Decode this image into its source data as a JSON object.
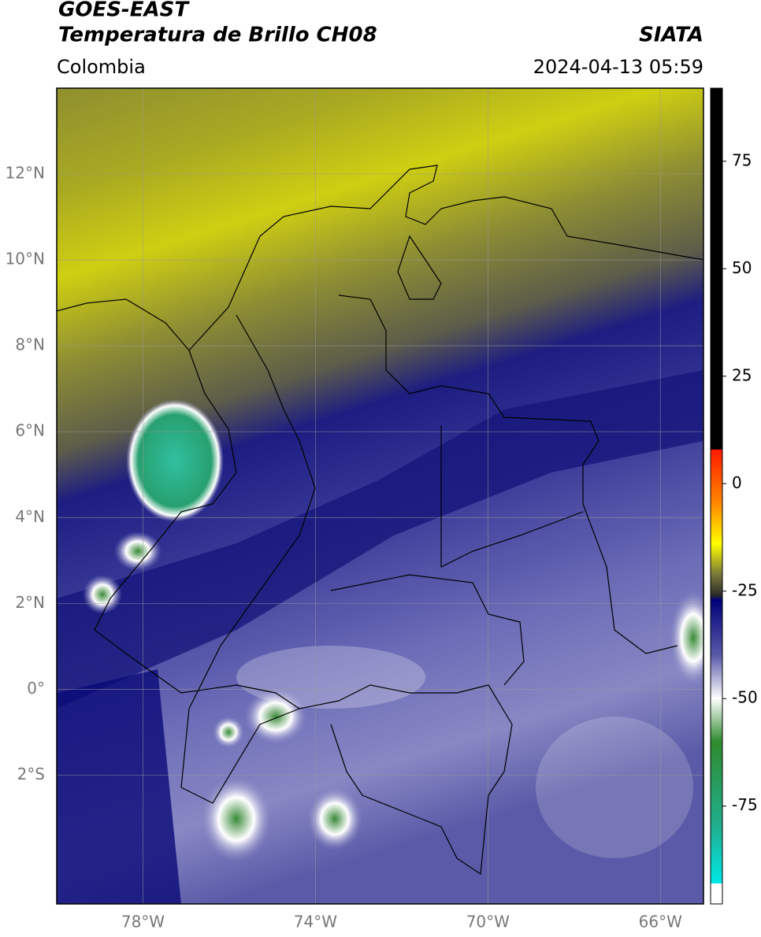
{
  "header": {
    "title": "GOES-EAST",
    "subtitle": "Temperatura de Brillo CH08",
    "region": "Colombia",
    "source": "SIATA",
    "datetime": "2024-04-13 05:59"
  },
  "map": {
    "lonlim": [
      -80,
      -65
    ],
    "latlim": [
      -5,
      14
    ],
    "lonticks": [
      {
        "value": -78,
        "label": "78°W"
      },
      {
        "value": -74,
        "label": "74°W"
      },
      {
        "value": -70,
        "label": "70°W"
      },
      {
        "value": -66,
        "label": "66°W"
      }
    ],
    "latticks": [
      {
        "value": 12,
        "label": "12°N"
      },
      {
        "value": 10,
        "label": "10°N"
      },
      {
        "value": 8,
        "label": "8°N"
      },
      {
        "value": 6,
        "label": "6°N"
      },
      {
        "value": 4,
        "label": "4°N"
      },
      {
        "value": 2,
        "label": "2°N"
      },
      {
        "value": 0,
        "label": "0°"
      },
      {
        "value": -2,
        "label": "2°S"
      }
    ],
    "grid": true
  },
  "colorbar": {
    "clim": [
      -93,
      92
    ],
    "ticks": [
      75,
      50,
      25,
      0,
      -25,
      -50,
      -75
    ],
    "colormap": [
      {
        "value": 92,
        "color": "#000000"
      },
      {
        "value": 8,
        "color": "#000000"
      },
      {
        "value": 7.9,
        "color": "#ff1a00"
      },
      {
        "value": -5,
        "color": "#ff8c00"
      },
      {
        "value": -14,
        "color": "#ffff00"
      },
      {
        "value": -21,
        "color": "#7a7a3a"
      },
      {
        "value": -26,
        "color": "#2a2a2a"
      },
      {
        "value": -27,
        "color": "#00007a"
      },
      {
        "value": -40,
        "color": "#5a5aaa"
      },
      {
        "value": -50,
        "color": "#ffffff"
      },
      {
        "value": -60,
        "color": "#2e8b2e"
      },
      {
        "value": -80,
        "color": "#20b090"
      },
      {
        "value": -93,
        "color": "#00e8e8"
      }
    ]
  }
}
